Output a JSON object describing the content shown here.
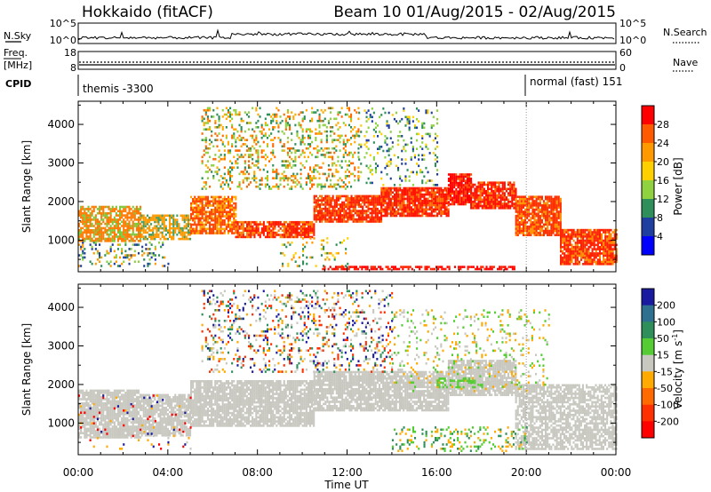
{
  "title": {
    "station": "Hokkaido (fitACF)",
    "beam_info": "Beam 10 01/Aug/2015 - 02/Aug/2015"
  },
  "header": {
    "nsky_label": "N.Sky",
    "nsearch_label": "N.Search",
    "nsky_ticks": [
      "10^5",
      "10^0"
    ],
    "nsearch_ticks": [
      "10^5",
      "10^0"
    ],
    "freq_label": "Freq.",
    "freq_unit": "[MHz]",
    "freq_ticks": [
      "18",
      "8"
    ],
    "nave_label": "Nave",
    "nave_ticks": [
      "60",
      "0"
    ],
    "cpid_label": "CPID",
    "cpid_segments": [
      "themis -3300",
      "normal (fast) 151"
    ]
  },
  "chart_data": [
    {
      "type": "heatmap",
      "name": "power-panel",
      "ylabel": "Slant Range [km]",
      "xlabel": "Time UT",
      "x_ticks": [
        "00:00",
        "04:00",
        "08:00",
        "12:00",
        "16:00",
        "20:00",
        "00:00"
      ],
      "xlim_hours": [
        0,
        24
      ],
      "y_ticks": [
        1000,
        2000,
        3000,
        4000
      ],
      "ylim": [
        180,
        4600
      ],
      "colorbar": {
        "label": "Power [dB]",
        "ticks": [
          "28",
          "24",
          "20",
          "16",
          "12",
          "8",
          "4"
        ],
        "colors": [
          "#ff0000",
          "#ff5a00",
          "#ff9900",
          "#ffd000",
          "#8fd13f",
          "#2f8f5a",
          "#1f3fa0",
          "#0000ff"
        ]
      },
      "bands": [
        {
          "start": 0,
          "end": 2.8,
          "low": 950,
          "high": 1850,
          "dominant": "#ff7a00",
          "secondary": "#7fc73a",
          "density": 0.75
        },
        {
          "start": 2.8,
          "end": 5.0,
          "low": 1000,
          "high": 1650,
          "dominant": "#ff9900",
          "secondary": "#44a060",
          "density": 0.7
        },
        {
          "start": 5.0,
          "end": 7.0,
          "low": 1150,
          "high": 2100,
          "dominant": "#ff4400",
          "secondary": "#ffaa00",
          "density": 0.8
        },
        {
          "start": 7.0,
          "end": 10.5,
          "low": 1050,
          "high": 1450,
          "dominant": "#ff1a00",
          "secondary": "#ff8000",
          "density": 0.85
        },
        {
          "start": 10.5,
          "end": 13.5,
          "low": 1450,
          "high": 2150,
          "dominant": "#ff2000",
          "secondary": "#ff7000",
          "density": 0.85
        },
        {
          "start": 13.5,
          "end": 16.5,
          "low": 1600,
          "high": 2350,
          "dominant": "#ff1500",
          "secondary": "#ff6a00",
          "density": 0.9
        },
        {
          "start": 16.5,
          "end": 17.5,
          "low": 1900,
          "high": 2700,
          "dominant": "#ff0000",
          "secondary": "#ff5000",
          "density": 0.9
        },
        {
          "start": 17.5,
          "end": 19.5,
          "low": 1800,
          "high": 2500,
          "dominant": "#ff1000",
          "secondary": "#ff7000",
          "density": 0.85
        },
        {
          "start": 19.5,
          "end": 21.5,
          "low": 1100,
          "high": 2100,
          "dominant": "#ff3000",
          "secondary": "#ff9000",
          "density": 0.85
        },
        {
          "start": 21.5,
          "end": 24,
          "low": 350,
          "high": 1250,
          "dominant": "#ff2000",
          "secondary": "#ff8800",
          "density": 0.85
        }
      ],
      "scatter_regions": [
        {
          "start": 5.5,
          "end": 12.5,
          "low": 2300,
          "high": 4400,
          "colors": [
            "#ffaa00",
            "#8fd13f",
            "#ff6a00",
            "#2f8f5a"
          ],
          "density": 0.25
        },
        {
          "start": 12.5,
          "end": 16.0,
          "low": 2400,
          "high": 4400,
          "colors": [
            "#8fd13f",
            "#2f8f5a",
            "#ffd000",
            "#1f3fa0"
          ],
          "density": 0.15
        },
        {
          "start": 0,
          "end": 4.0,
          "low": 300,
          "high": 950,
          "colors": [
            "#2f8f5a",
            "#1f3fa0",
            "#8fd13f",
            "#ff9900"
          ],
          "density": 0.2
        },
        {
          "start": 9.0,
          "end": 12.0,
          "low": 300,
          "high": 1050,
          "colors": [
            "#ffd000",
            "#2f8f5a",
            "#ff9900"
          ],
          "density": 0.15
        },
        {
          "start": 10.8,
          "end": 19.5,
          "low": 220,
          "high": 330,
          "colors": [
            "#ff0000",
            "#ff2200"
          ],
          "density": 0.6
        }
      ]
    },
    {
      "type": "heatmap",
      "name": "velocity-panel",
      "ylabel": "Slant Range [km]",
      "xlabel": "Time UT",
      "x_ticks": [
        "00:00",
        "04:00",
        "08:00",
        "12:00",
        "16:00",
        "20:00",
        "00:00"
      ],
      "xlim_hours": [
        0,
        24
      ],
      "y_ticks": [
        1000,
        2000,
        3000,
        4000
      ],
      "ylim": [
        180,
        4600
      ],
      "colorbar": {
        "label": "Velocity [m s^-1]",
        "ticks": [
          "200",
          "100",
          "50",
          "15",
          "-15",
          "-50",
          "-100",
          "-200"
        ],
        "colors": [
          "#1a1aa0",
          "#2f6f8f",
          "#2f8f5a",
          "#55cc33",
          "#c8c8c0",
          "#ffaa00",
          "#ff6a00",
          "#ff3000",
          "#ff0000"
        ]
      },
      "bands": [
        {
          "start": 0,
          "end": 2.8,
          "low": 600,
          "high": 1850,
          "dominant": "#c8c8c0",
          "secondary": "#c8c8c0",
          "density": 0.85
        },
        {
          "start": 2.8,
          "end": 5.0,
          "low": 650,
          "high": 1700,
          "dominant": "#c8c8c0",
          "secondary": "#c8c8c0",
          "density": 0.8
        },
        {
          "start": 5.0,
          "end": 10.5,
          "low": 900,
          "high": 2100,
          "dominant": "#c8c8c0",
          "secondary": "#c8c8c0",
          "density": 0.85
        },
        {
          "start": 10.5,
          "end": 16.5,
          "low": 1300,
          "high": 2300,
          "dominant": "#c8c8c0",
          "secondary": "#c8c8c0",
          "density": 0.85
        },
        {
          "start": 16.5,
          "end": 19.5,
          "low": 1700,
          "high": 2600,
          "dominant": "#c8c8c0",
          "secondary": "#c8c8c0",
          "density": 0.85
        },
        {
          "start": 19.5,
          "end": 24,
          "low": 300,
          "high": 2000,
          "dominant": "#c8c8c0",
          "secondary": "#c8c8c0",
          "density": 0.7
        }
      ],
      "scatter_regions": [
        {
          "start": 5.5,
          "end": 14.0,
          "low": 2300,
          "high": 4400,
          "colors": [
            "#ffaa00",
            "#c8c8c0",
            "#2f8f5a",
            "#1a1aa0",
            "#ff3000"
          ],
          "density": 0.2
        },
        {
          "start": 14.0,
          "end": 21.0,
          "low": 1800,
          "high": 3900,
          "colors": [
            "#c8c8c0",
            "#ffaa00",
            "#55cc33"
          ],
          "density": 0.12
        },
        {
          "start": 0,
          "end": 5.0,
          "low": 250,
          "high": 1700,
          "colors": [
            "#ff0000",
            "#1a1aa0",
            "#ffaa00",
            "#c8c8c0"
          ],
          "density": 0.06
        },
        {
          "start": 14.0,
          "end": 20.0,
          "low": 250,
          "high": 900,
          "colors": [
            "#55cc33",
            "#ffaa00",
            "#2f8f5a"
          ],
          "density": 0.2
        },
        {
          "start": 16.0,
          "end": 18.0,
          "low": 1900,
          "high": 2150,
          "colors": [
            "#55cc33"
          ],
          "density": 0.3
        }
      ]
    }
  ]
}
